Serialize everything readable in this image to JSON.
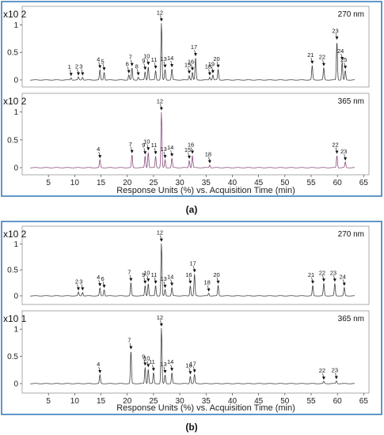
{
  "figure": {
    "panel_captions": [
      "(a)",
      "(b)"
    ],
    "x_axis_label": "Response Units (%) vs. Acquisition Time (min)",
    "x_ticks": [
      "5",
      "10",
      "15",
      "20",
      "25",
      "30",
      "35",
      "40",
      "45",
      "50",
      "55",
      "60",
      "65"
    ],
    "frame_color": "#2e75b6",
    "trace_color_270": "#404040",
    "trace_color_365": "#8a4f7d"
  },
  "chart_data": [
    {
      "type": "line",
      "panel": "(a)",
      "title": "270 nm",
      "y_scale_label": "x10 2",
      "xlim": [
        0,
        66
      ],
      "ylim": [
        0,
        1.3
      ],
      "y_ticks": [
        "0",
        "0.5",
        "1"
      ],
      "peaks": [
        {
          "label": "1",
          "x": 9.3,
          "y": 0.04
        },
        {
          "label": "2",
          "x": 10.7,
          "y": 0.05
        },
        {
          "label": "3",
          "x": 11.5,
          "y": 0.05
        },
        {
          "label": "4",
          "x": 14.8,
          "y": 0.18
        },
        {
          "label": "5",
          "x": 15.6,
          "y": 0.14
        },
        {
          "label": "6",
          "x": 20.3,
          "y": 0.09
        },
        {
          "label": "7",
          "x": 20.9,
          "y": 0.22
        },
        {
          "label": "8",
          "x": 22.1,
          "y": 0.05
        },
        {
          "label": "9",
          "x": 23.4,
          "y": 0.15
        },
        {
          "label": "10",
          "x": 24.0,
          "y": 0.24
        },
        {
          "label": "11",
          "x": 25.4,
          "y": 0.17
        },
        {
          "label": "12",
          "x": 26.5,
          "y": 1.03
        },
        {
          "label": "13",
          "x": 27.2,
          "y": 0.19
        },
        {
          "label": "14",
          "x": 28.5,
          "y": 0.2
        },
        {
          "label": "15",
          "x": 31.8,
          "y": 0.08
        },
        {
          "label": "16",
          "x": 32.4,
          "y": 0.14
        },
        {
          "label": "17",
          "x": 33.0,
          "y": 0.4
        },
        {
          "label": "18",
          "x": 35.7,
          "y": 0.05
        },
        {
          "label": "19",
          "x": 36.3,
          "y": 0.09
        },
        {
          "label": "20",
          "x": 37.3,
          "y": 0.19
        },
        {
          "label": "21",
          "x": 55.2,
          "y": 0.26
        },
        {
          "label": "22",
          "x": 57.4,
          "y": 0.22
        },
        {
          "label": "23",
          "x": 59.9,
          "y": 0.7
        },
        {
          "label": "24",
          "x": 60.9,
          "y": 0.33
        },
        {
          "label": "25",
          "x": 61.5,
          "y": 0.17
        }
      ]
    },
    {
      "type": "line",
      "panel": "(a)",
      "title": "365 nm",
      "y_scale_label": "x10 2",
      "xlim": [
        0,
        66
      ],
      "ylim": [
        0,
        1.3
      ],
      "y_ticks": [
        "0",
        "0.5",
        "1"
      ],
      "peaks": [
        {
          "label": "4",
          "x": 14.8,
          "y": 0.14
        },
        {
          "label": "7",
          "x": 20.9,
          "y": 0.23
        },
        {
          "label": "9",
          "x": 23.4,
          "y": 0.21
        },
        {
          "label": "10",
          "x": 24.0,
          "y": 0.28
        },
        {
          "label": "11",
          "x": 25.4,
          "y": 0.21
        },
        {
          "label": "12",
          "x": 26.5,
          "y": 1.0
        },
        {
          "label": "13",
          "x": 27.2,
          "y": 0.14
        },
        {
          "label": "14",
          "x": 28.5,
          "y": 0.17
        },
        {
          "label": "15",
          "x": 31.8,
          "y": 0.13
        },
        {
          "label": "16",
          "x": 32.4,
          "y": 0.22
        },
        {
          "label": "18",
          "x": 35.7,
          "y": 0.05
        },
        {
          "label": "22",
          "x": 59.9,
          "y": 0.22
        },
        {
          "label": "23",
          "x": 61.5,
          "y": 0.1
        }
      ]
    },
    {
      "type": "line",
      "panel": "(b)",
      "title": "270 nm",
      "y_scale_label": "x10 2",
      "xlim": [
        0,
        66
      ],
      "ylim": [
        0,
        1.3
      ],
      "y_ticks": [
        "0",
        "0.5",
        "1"
      ],
      "peaks": [
        {
          "label": "2",
          "x": 10.7,
          "y": 0.07
        },
        {
          "label": "3",
          "x": 11.5,
          "y": 0.07
        },
        {
          "label": "4",
          "x": 14.8,
          "y": 0.15
        },
        {
          "label": "6",
          "x": 15.6,
          "y": 0.12
        },
        {
          "label": "7",
          "x": 20.7,
          "y": 0.25
        },
        {
          "label": "9",
          "x": 23.4,
          "y": 0.2
        },
        {
          "label": "10",
          "x": 24.0,
          "y": 0.24
        },
        {
          "label": "11",
          "x": 25.4,
          "y": 0.2
        },
        {
          "label": "12",
          "x": 26.5,
          "y": 1.01
        },
        {
          "label": "13",
          "x": 27.2,
          "y": 0.12
        },
        {
          "label": "14",
          "x": 28.5,
          "y": 0.16
        },
        {
          "label": "16",
          "x": 32.0,
          "y": 0.2
        },
        {
          "label": "17",
          "x": 32.8,
          "y": 0.42
        },
        {
          "label": "18",
          "x": 35.5,
          "y": 0.05
        },
        {
          "label": "20",
          "x": 37.3,
          "y": 0.2
        },
        {
          "label": "21",
          "x": 55.3,
          "y": 0.2
        },
        {
          "label": "22",
          "x": 57.4,
          "y": 0.24
        },
        {
          "label": "23",
          "x": 59.5,
          "y": 0.24
        },
        {
          "label": "24",
          "x": 61.3,
          "y": 0.16
        }
      ]
    },
    {
      "type": "line",
      "panel": "(b)",
      "title": "365 nm",
      "y_scale_label": "x10 1",
      "xlim": [
        0,
        66
      ],
      "ylim": [
        0,
        1.3
      ],
      "y_ticks": [
        "0",
        "0.5",
        "1"
      ],
      "peaks": [
        {
          "label": "4",
          "x": 14.8,
          "y": 0.16
        },
        {
          "label": "7",
          "x": 20.7,
          "y": 0.6
        },
        {
          "label": "9",
          "x": 23.4,
          "y": 0.3
        },
        {
          "label": "10",
          "x": 24.0,
          "y": 0.27
        },
        {
          "label": "11",
          "x": 25.0,
          "y": 0.2
        },
        {
          "label": "12",
          "x": 26.5,
          "y": 1.02
        },
        {
          "label": "13",
          "x": 27.2,
          "y": 0.16
        },
        {
          "label": "14",
          "x": 28.5,
          "y": 0.2
        },
        {
          "label": "16",
          "x": 32.0,
          "y": 0.14
        },
        {
          "label": "17",
          "x": 32.8,
          "y": 0.17
        },
        {
          "label": "22",
          "x": 57.4,
          "y": 0.04
        },
        {
          "label": "23",
          "x": 59.8,
          "y": 0.05
        }
      ]
    }
  ]
}
